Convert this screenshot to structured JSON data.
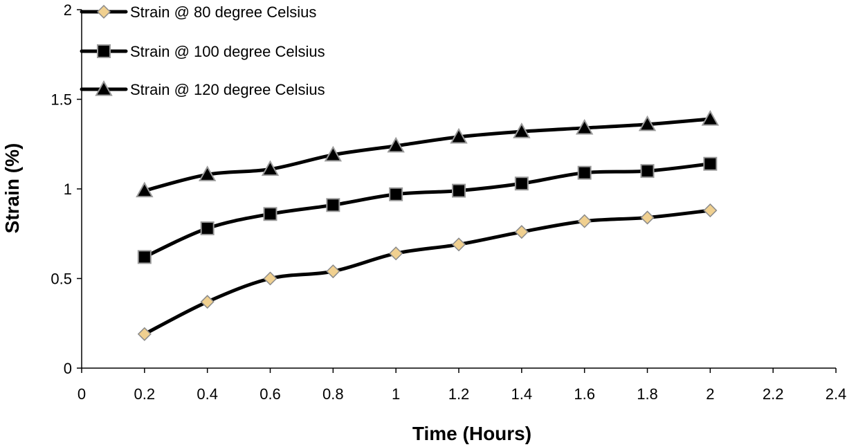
{
  "chart_data": {
    "type": "line",
    "title": "",
    "xlabel": "Time (Hours)",
    "ylabel": "Strain (%)",
    "xlim": [
      0,
      2.4
    ],
    "ylim": [
      0,
      2
    ],
    "x_ticks": [
      "0",
      "0.2",
      "0.4",
      "0.6",
      "0.8",
      "1",
      "1.2",
      "1.4",
      "1.6",
      "1.8",
      "2",
      "2.2",
      "2.4"
    ],
    "x_tick_values": [
      0,
      0.2,
      0.4,
      0.6,
      0.8,
      1,
      1.2,
      1.4,
      1.6,
      1.8,
      2,
      2.2,
      2.4
    ],
    "y_ticks": [
      "0",
      "0.5",
      "1",
      "1.5",
      "2"
    ],
    "y_tick_values": [
      0,
      0.5,
      1,
      1.5,
      2
    ],
    "grid": false,
    "legend_position": "top-left",
    "x": [
      0.2,
      0.4,
      0.6,
      0.8,
      1.0,
      1.2,
      1.4,
      1.6,
      1.8,
      2.0
    ],
    "series": [
      {
        "name": "Strain @ 80 degree Celsius",
        "marker": "diamond",
        "marker_color": "#f0d090",
        "values": [
          0.19,
          0.37,
          0.5,
          0.54,
          0.64,
          0.69,
          0.76,
          0.82,
          0.84,
          0.88
        ]
      },
      {
        "name": "Strain @ 100 degree Celsius",
        "marker": "square",
        "marker_color": "#000000",
        "values": [
          0.62,
          0.78,
          0.86,
          0.91,
          0.97,
          0.99,
          1.03,
          1.09,
          1.1,
          1.14
        ]
      },
      {
        "name": "Strain @ 120 degree Celsius",
        "marker": "triangle",
        "marker_color": "#000000",
        "values": [
          0.99,
          1.08,
          1.11,
          1.19,
          1.24,
          1.29,
          1.32,
          1.34,
          1.36,
          1.39
        ]
      }
    ]
  }
}
